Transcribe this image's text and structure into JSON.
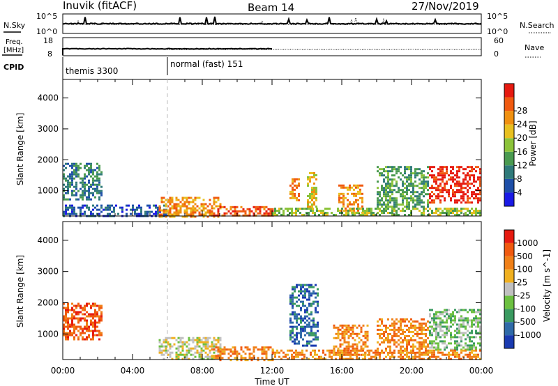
{
  "header": {
    "station": "Inuvik (fitACF)",
    "beam": "Beam 14",
    "date": "27/Nov/2019"
  },
  "aux_panels": {
    "nsky_label": "N.Sky",
    "nsky_ticks": [
      "10^5",
      "10^0"
    ],
    "nsearch_label": "N.Search",
    "nsearch_ticks": [
      "10^5",
      "10^0"
    ],
    "freq_label_1": "Freq.",
    "freq_label_2": "[MHz]",
    "freq_ticks": [
      "18",
      "8"
    ],
    "nave_label": "Nave",
    "nave_ticks": [
      "60",
      "0"
    ],
    "cpid_label": "CPID",
    "cpid_modes": [
      {
        "name": "themis 3300",
        "start_hour": 0
      },
      {
        "name": "normal (fast) 151",
        "start_hour": 6
      }
    ]
  },
  "chart_data": [
    {
      "type": "heatmap",
      "panel": "power",
      "ylabel": "Slant Range [km]",
      "xlabel": "",
      "ylim": [
        180,
        4600
      ],
      "xlim_hours": [
        0,
        24
      ],
      "y_ticks": [
        "1000",
        "2000",
        "3000",
        "4000"
      ],
      "colorbar_label": "Power [dB]",
      "colorbar_ticks": [
        "4",
        "8",
        "12",
        "16",
        "20",
        "24",
        "28"
      ],
      "colorbar_colors": [
        "#1a1ae6",
        "#1e4fa8",
        "#2f7a7a",
        "#4a9a50",
        "#8cc33a",
        "#e8c020",
        "#f09010",
        "#f05a10",
        "#e61a10"
      ],
      "regions": [
        {
          "t": [
            0.0,
            2.2
          ],
          "r": [
            700,
            1900
          ],
          "level": 2
        },
        {
          "t": [
            0.0,
            6.0
          ],
          "r": [
            180,
            550
          ],
          "level": 1
        },
        {
          "t": [
            5.5,
            9.0
          ],
          "r": [
            180,
            800
          ],
          "level": 6
        },
        {
          "t": [
            8.5,
            12.0
          ],
          "r": [
            180,
            500
          ],
          "level": 7
        },
        {
          "t": [
            13.0,
            13.6
          ],
          "r": [
            700,
            1400
          ],
          "level": 6
        },
        {
          "t": [
            14.0,
            14.6
          ],
          "r": [
            500,
            1600
          ],
          "level": 5
        },
        {
          "t": [
            15.8,
            17.2
          ],
          "r": [
            300,
            1200
          ],
          "level": 6
        },
        {
          "t": [
            18.0,
            21.0
          ],
          "r": [
            400,
            1800
          ],
          "level": 3
        },
        {
          "t": [
            21.0,
            24.0
          ],
          "r": [
            600,
            1800
          ],
          "level": 8
        },
        {
          "t": [
            12.0,
            24.0
          ],
          "r": [
            180,
            450
          ],
          "level": 4
        }
      ]
    },
    {
      "type": "heatmap",
      "panel": "velocity",
      "ylabel": "Slant Range [km]",
      "xlabel": "Time UT",
      "ylim": [
        180,
        4600
      ],
      "xlim_hours": [
        0,
        24
      ],
      "y_ticks": [
        "1000",
        "2000",
        "3000",
        "4000"
      ],
      "x_ticks": [
        "00:00",
        "04:00",
        "08:00",
        "12:00",
        "16:00",
        "20:00",
        "00:00"
      ],
      "colorbar_label": "Velocity [m s^-1]",
      "colorbar_ticks": [
        "1000",
        "500",
        "100",
        "25",
        "-25",
        "-100",
        "-500",
        "-1000"
      ],
      "colorbar_colors": [
        "#1a3ab0",
        "#2f6aa8",
        "#3a9a60",
        "#6cc040",
        "#c0c0c0",
        "#f0b020",
        "#f08018",
        "#f05a10",
        "#e61a10"
      ],
      "regions": [
        {
          "t": [
            0.0,
            2.2
          ],
          "r": [
            800,
            2000
          ],
          "level": 7
        },
        {
          "t": [
            5.5,
            9.0
          ],
          "r": [
            180,
            900
          ],
          "level": 4
        },
        {
          "t": [
            8.5,
            12.0
          ],
          "r": [
            180,
            600
          ],
          "level": 6
        },
        {
          "t": [
            13.0,
            14.6
          ],
          "r": [
            600,
            2600
          ],
          "level": 1
        },
        {
          "t": [
            15.5,
            17.5
          ],
          "r": [
            300,
            1300
          ],
          "level": 6
        },
        {
          "t": [
            18.0,
            21.0
          ],
          "r": [
            400,
            1500
          ],
          "level": 6
        },
        {
          "t": [
            21.0,
            24.0
          ],
          "r": [
            500,
            1800
          ],
          "level": 3
        },
        {
          "t": [
            12.0,
            24.0
          ],
          "r": [
            180,
            500
          ],
          "level": 6
        }
      ]
    }
  ]
}
